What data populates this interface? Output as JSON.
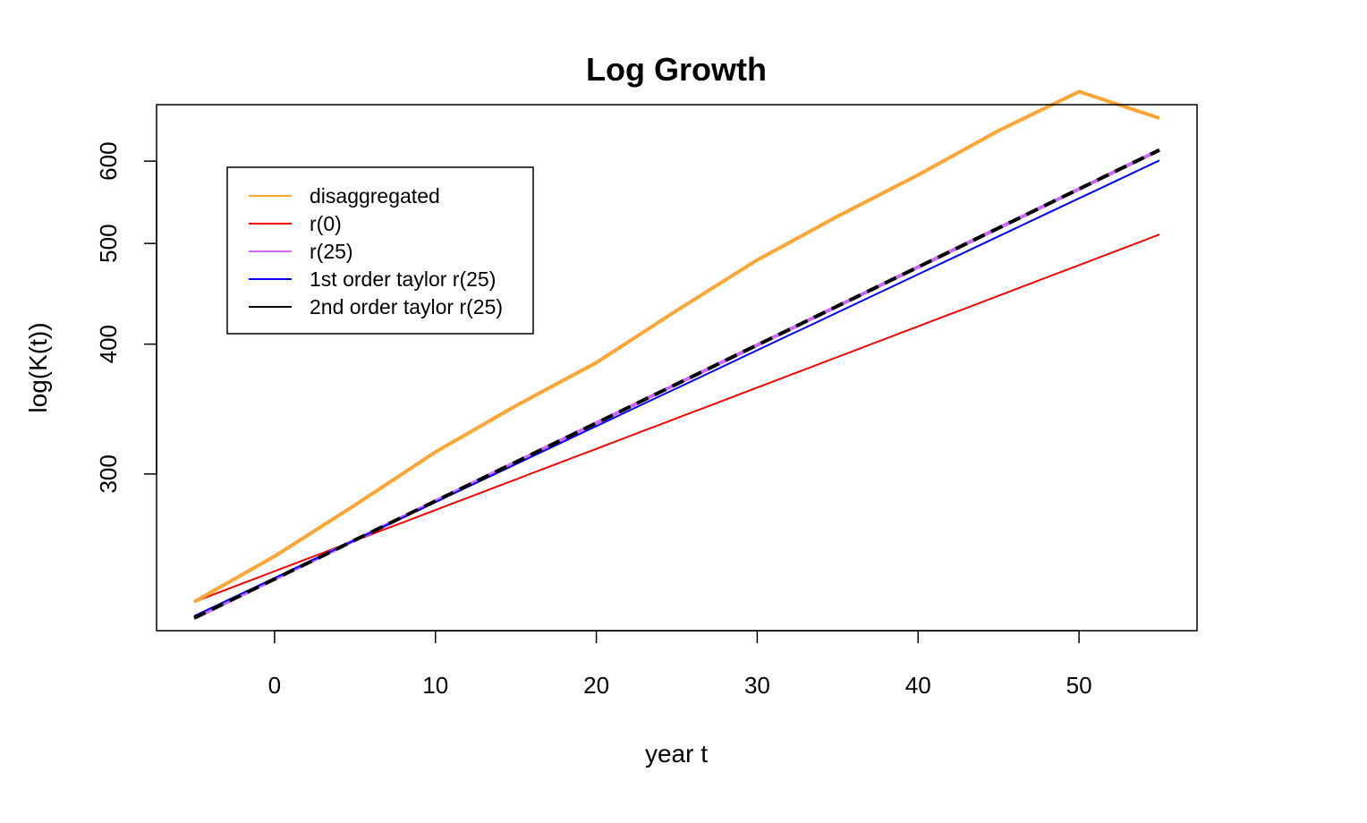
{
  "chart_data": {
    "type": "line",
    "title": "Log Growth",
    "xlabel": "year t",
    "ylabel": "log(K(t))",
    "y_scale": "log",
    "xlim": [
      -5,
      55
    ],
    "ylim": [
      212,
      680
    ],
    "x_ticks": [
      0,
      10,
      20,
      30,
      40,
      50
    ],
    "y_ticks": [
      300,
      400,
      500,
      600
    ],
    "grid": false,
    "legend_position": "top-left",
    "series": [
      {
        "name": "disaggregated",
        "color": "#FFA533",
        "style": "solid",
        "width": "thick",
        "x": [
          -5,
          0,
          5,
          10,
          15,
          20,
          25,
          30,
          35,
          40,
          45,
          50,
          55
        ],
        "y": [
          226,
          250,
          280,
          315,
          349,
          384,
          431,
          482,
          531,
          582,
          642,
          700,
          660
        ]
      },
      {
        "name": "r(0)",
        "color": "#FF0000",
        "style": "solid",
        "width": "thin",
        "x": [
          -5,
          55
        ],
        "y": [
          226,
          510
        ]
      },
      {
        "name": "r(25)",
        "color": "#CC66FF",
        "style": "solid",
        "width": "thick",
        "x": [
          -5,
          55
        ],
        "y": [
          218,
          615
        ]
      },
      {
        "name": "1st order taylor r(25)",
        "color": "#0000FF",
        "style": "solid",
        "width": "thin",
        "x": [
          -5,
          55
        ],
        "y": [
          219,
          601
        ]
      },
      {
        "name": "2nd order taylor r(25)",
        "color": "#000000",
        "style": "dashed",
        "width": "thick",
        "x": [
          -5,
          55
        ],
        "y": [
          218,
          615
        ]
      }
    ]
  }
}
